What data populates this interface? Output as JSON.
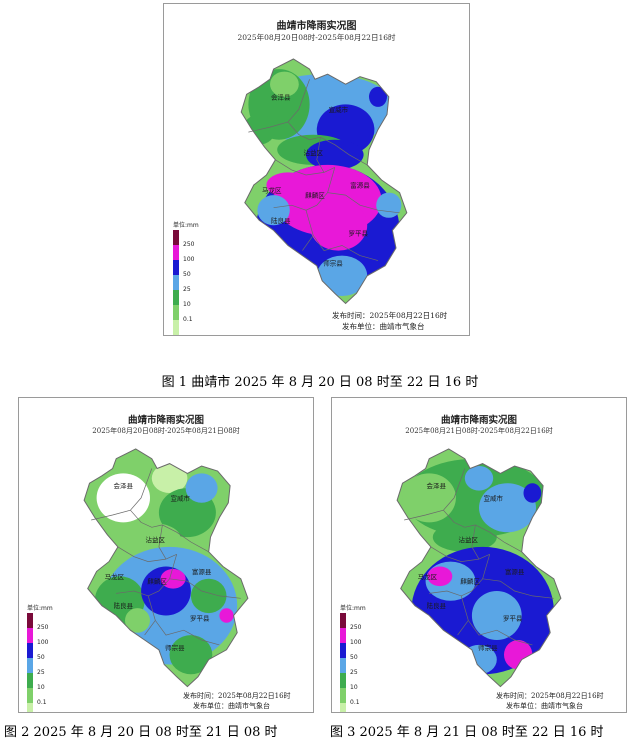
{
  "colors": {
    "c01": "#c8f0a8",
    "c10": "#7fd06a",
    "c25": "#3eac4e",
    "c50": "#5aa6e6",
    "c100": "#1a1ad2",
    "c250": "#e818d8",
    "c250plus": "#7a0a3a",
    "none": "#ffffff",
    "border": "#6a6a6a"
  },
  "legend": {
    "title": "单位:mm",
    "levels": [
      "250",
      "100",
      "50",
      "25",
      "10",
      "0.1"
    ]
  },
  "maps": [
    {
      "title": "曲靖市降雨实况图",
      "period": "2025年08月20日08时-2025年08月22日16时",
      "credit_time": "发布时间：2025年08月22日16时",
      "credit_unit": "发布单位：曲靖市气象台",
      "counties": [
        "会泽县",
        "宣威市",
        "沾益区",
        "马龙区",
        "麒麟区",
        "富源县",
        "陆良县",
        "罗平县",
        "师宗县"
      ]
    },
    {
      "title": "曲靖市降雨实况图",
      "period": "2025年08月20日08时-2025年08月21日08时",
      "credit_time": "发布时间：2025年08月22日16时",
      "credit_unit": "发布单位：曲靖市气象台",
      "counties": [
        "会泽县",
        "宣威市",
        "沾益区",
        "马龙区",
        "麒麟区",
        "富源县",
        "陆良县",
        "罗平县",
        "师宗县"
      ]
    },
    {
      "title": "曲靖市降雨实况图",
      "period": "2025年08月21日08时-2025年08月22日16时",
      "credit_time": "发布时间：2025年08月22日16时",
      "credit_unit": "发布单位：曲靖市气象台",
      "counties": [
        "会泽县",
        "宣威市",
        "沾益区",
        "马龙区",
        "麒麟区",
        "富源县",
        "陆良县",
        "罗平县",
        "师宗县"
      ]
    }
  ],
  "captions": [
    "图 1  曲靖市 2025 年 8 月 20 日 08 时至 22 日 16 时",
    "图 2  2025 年 8 月 20 日 08 时至 21 日 08 时",
    "图 3  2025 年 8 月 21 日 08 时至 22 日 16 时"
  ]
}
